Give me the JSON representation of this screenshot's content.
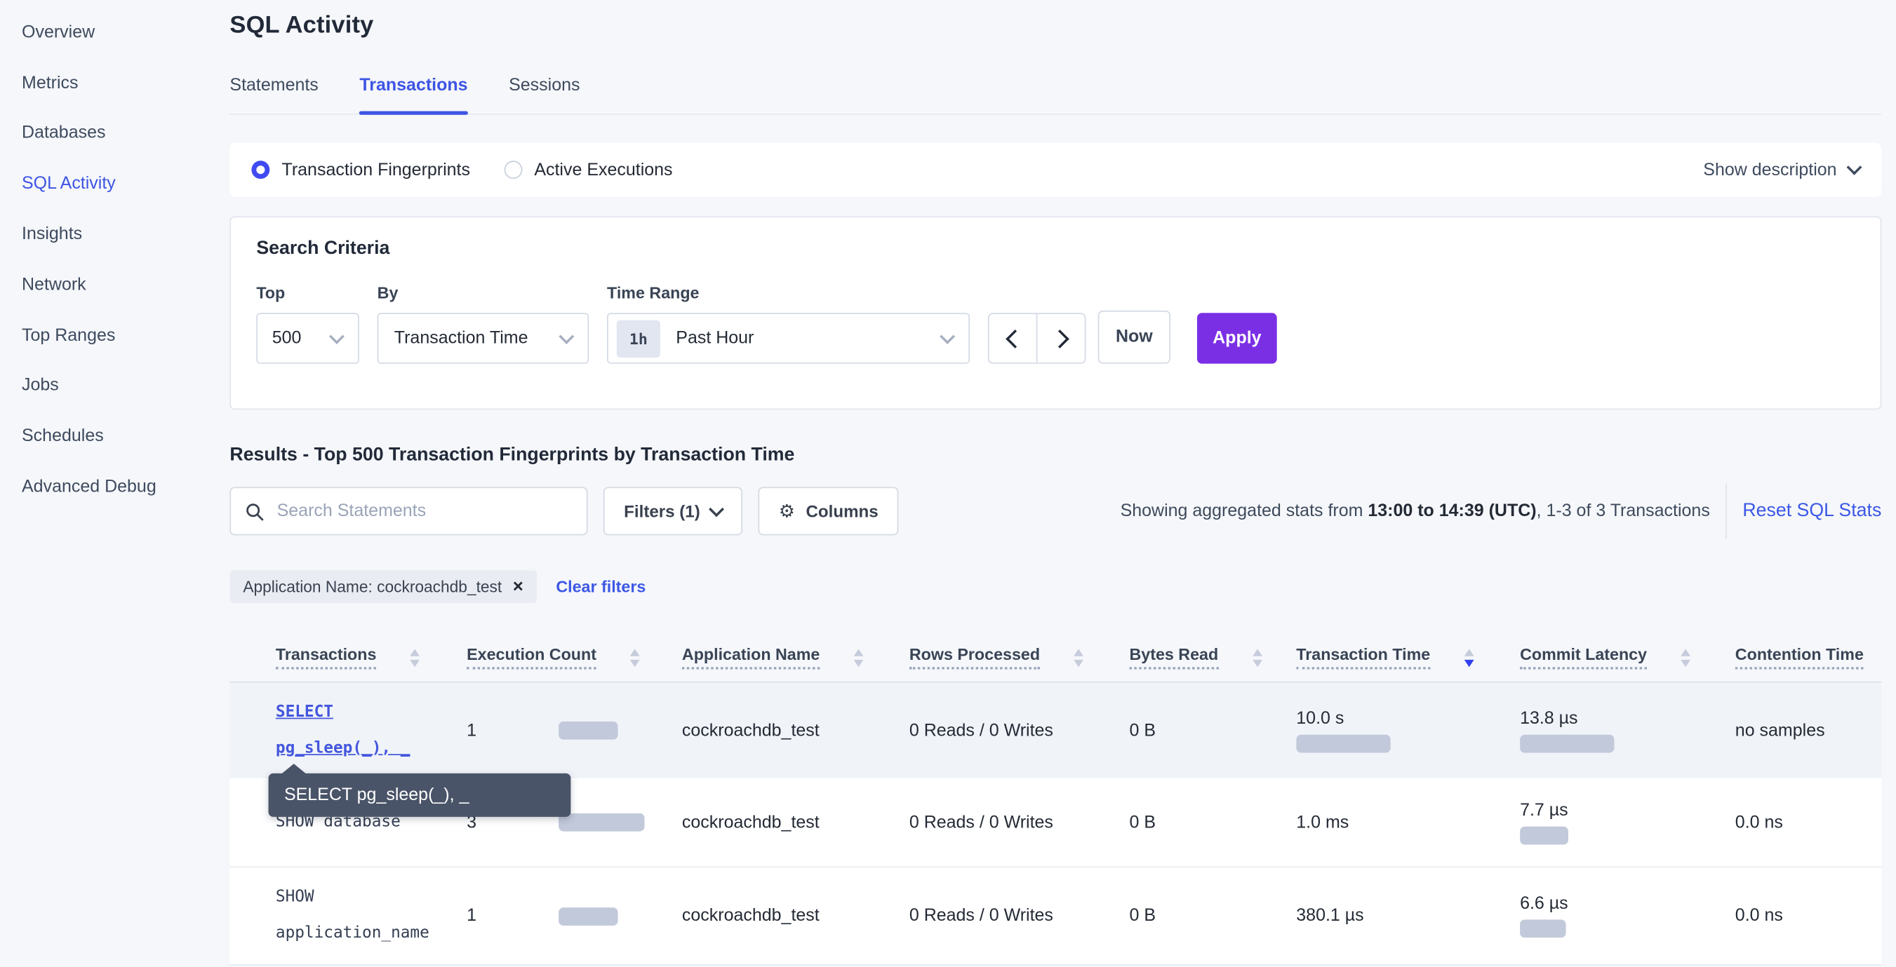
{
  "colors": {
    "accent_blue": "#3e54e4",
    "link_blue": "#4356dd",
    "apply_purple": "#7b2fe5",
    "sort_active": "#3240f0",
    "bar": "#c2c9da",
    "tooltip_bg": "#4a5468",
    "row_highlight": "#f0f3f8"
  },
  "sidebar": {
    "items": [
      {
        "label": "Overview",
        "active": false
      },
      {
        "label": "Metrics",
        "active": false
      },
      {
        "label": "Databases",
        "active": false
      },
      {
        "label": "SQL Activity",
        "active": true
      },
      {
        "label": "Insights",
        "active": false
      },
      {
        "label": "Network",
        "active": false
      },
      {
        "label": "Top Ranges",
        "active": false
      },
      {
        "label": "Jobs",
        "active": false
      },
      {
        "label": "Schedules",
        "active": false
      },
      {
        "label": "Advanced Debug",
        "active": false
      }
    ]
  },
  "header": {
    "title": "SQL Activity",
    "tabs": [
      {
        "label": "Statements",
        "active": false
      },
      {
        "label": "Transactions",
        "active": true
      },
      {
        "label": "Sessions",
        "active": false
      }
    ]
  },
  "view_toggle": {
    "options": [
      {
        "label": "Transaction Fingerprints",
        "selected": true
      },
      {
        "label": "Active Executions",
        "selected": false
      }
    ],
    "show_description": "Show description"
  },
  "search_criteria": {
    "title": "Search Criteria",
    "top": {
      "label": "Top",
      "value": "500"
    },
    "by": {
      "label": "By",
      "value": "Transaction Time"
    },
    "time_range": {
      "label": "Time Range",
      "badge": "1h",
      "value": "Past Hour"
    },
    "now_label": "Now",
    "apply_label": "Apply"
  },
  "results": {
    "heading": "Results - Top 500 Transaction Fingerprints by Transaction Time",
    "search_placeholder": "Search Statements",
    "filters_label": "Filters (1)",
    "columns_label": "Columns",
    "stats_prefix": "Showing aggregated stats from ",
    "stats_range": "13:00 to 14:39 (UTC)",
    "stats_suffix": ", 1-3 of 3 Transactions",
    "reset_label": "Reset SQL Stats",
    "filter_pill": "Application Name: cockroachdb_test",
    "clear_filters": "Clear filters"
  },
  "tooltip": {
    "text": "SELECT pg_sleep(_), _"
  },
  "table": {
    "columns": [
      {
        "label": "Transactions",
        "sort": "none"
      },
      {
        "label": "Execution Count",
        "sort": "none"
      },
      {
        "label": "Application Name",
        "sort": "none"
      },
      {
        "label": "Rows Processed",
        "sort": "none"
      },
      {
        "label": "Bytes Read",
        "sort": "none"
      },
      {
        "label": "Transaction Time",
        "sort": "desc"
      },
      {
        "label": "Commit Latency",
        "sort": "none"
      },
      {
        "label": "Contention Time",
        "sort": "none"
      }
    ],
    "rows": [
      {
        "transaction": "SELECT\npg_sleep(_), _",
        "is_link": true,
        "execution_count": "1",
        "exec_bar_w": 49,
        "application_name": "cockroachdb_test",
        "rows_processed": "0 Reads / 0 Writes",
        "bytes_read": "0 B",
        "transaction_time": "10.0 s",
        "txn_bar_w": 78,
        "commit_latency": "13.8 µs",
        "commit_bar_w": 78,
        "contention_time": "no samples"
      },
      {
        "transaction": "SHOW database",
        "is_link": false,
        "execution_count": "3",
        "exec_bar_w": 71,
        "application_name": "cockroachdb_test",
        "rows_processed": "0 Reads / 0 Writes",
        "bytes_read": "0 B",
        "transaction_time": "1.0 ms",
        "txn_bar_w": 0,
        "commit_latency": "7.7 µs",
        "commit_bar_w": 40,
        "contention_time": "0.0 ns"
      },
      {
        "transaction": "SHOW\napplication_name",
        "is_link": false,
        "execution_count": "1",
        "exec_bar_w": 49,
        "application_name": "cockroachdb_test",
        "rows_processed": "0 Reads / 0 Writes",
        "bytes_read": "0 B",
        "transaction_time": "380.1 µs",
        "txn_bar_w": 0,
        "commit_latency": "6.6 µs",
        "commit_bar_w": 38,
        "contention_time": "0.0 ns"
      }
    ]
  }
}
